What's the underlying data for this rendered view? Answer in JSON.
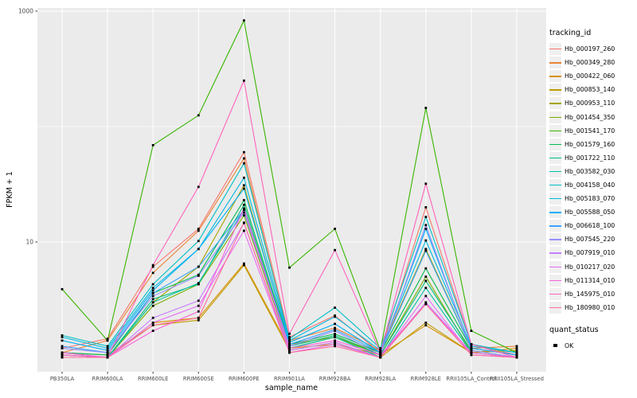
{
  "chart_data": {
    "type": "line",
    "title": "",
    "xlabel": "sample_name",
    "ylabel": "FPKM + 1",
    "y_scale": "log10",
    "y_tick_labels": [
      "1000",
      "10"
    ],
    "y_ticks": [
      1000,
      10
    ],
    "y_gridlines": [
      10,
      100,
      1000
    ],
    "ylim": [
      0.75,
      1066
    ],
    "grid": true,
    "legend_position": "right",
    "panel_bg": "#EBEBEB",
    "grid_color": "#FFFFFF",
    "point_color": "#000000",
    "axis_text_color": "#4D4D4D",
    "categories": [
      "PB350LA",
      "RRIM600LA",
      "RRIM600LE",
      "RRIM600SE",
      "RRIM600PE",
      "RRIM901LA",
      "RRIM928BA",
      "RRIM928LA",
      "RRIM928LE",
      "RRII105LA_Control",
      "RRII105LA_Stressed"
    ],
    "series": [
      {
        "name": "Hb_000197_260",
        "color": "#F8766D",
        "values": [
          1.2,
          1.45,
          6.1,
          13,
          60,
          1.5,
          2.3,
          1.1,
          20,
          1.3,
          1.05
        ]
      },
      {
        "name": "Hb_000349_280",
        "color": "#EA8331",
        "values": [
          1.1,
          1.4,
          5.4,
          12.5,
          53,
          1.4,
          1.8,
          1.15,
          8.5,
          1.2,
          1.25
        ]
      },
      {
        "name": "Hb_000422_060",
        "color": "#D89000",
        "values": [
          1.05,
          1.0,
          2.0,
          2.2,
          6.5,
          1.2,
          1.3,
          1.05,
          1.9,
          1.1,
          1.2
        ]
      },
      {
        "name": "Hb_000853_140",
        "color": "#C09B00",
        "values": [
          1.1,
          1.05,
          1.9,
          2.1,
          6.3,
          1.15,
          1.35,
          1.0,
          2.0,
          1.1,
          1.15
        ]
      },
      {
        "name": "Hb_000953_110",
        "color": "#A3A500",
        "values": [
          1.0,
          1.0,
          3.0,
          6.1,
          31,
          1.3,
          1.5,
          1.1,
          8.7,
          1.2,
          1.05
        ]
      },
      {
        "name": "Hb_001454_350",
        "color": "#7CAE00",
        "values": [
          1.05,
          1.0,
          2.8,
          4.3,
          17,
          1.2,
          1.5,
          1.05,
          5.0,
          1.1,
          1.0
        ]
      },
      {
        "name": "Hb_001541_170",
        "color": "#39B600",
        "values": [
          3.9,
          1.4,
          69,
          125,
          830,
          6.0,
          13,
          1.15,
          145,
          1.7,
          1.1
        ]
      },
      {
        "name": "Hb_001579_160",
        "color": "#00BB4E",
        "values": [
          1.1,
          1.05,
          3.6,
          5.2,
          23,
          1.3,
          1.6,
          1.1,
          5.9,
          1.2,
          1.05
        ]
      },
      {
        "name": "Hb_001722_110",
        "color": "#00BF7D",
        "values": [
          1.05,
          1.0,
          3.2,
          4.3,
          21,
          1.25,
          1.55,
          1.05,
          4.6,
          1.15,
          1.0
        ]
      },
      {
        "name": "Hb_003582_030",
        "color": "#00C1A3",
        "values": [
          1.1,
          1.0,
          3.0,
          4.4,
          19,
          1.2,
          1.5,
          1.0,
          4.0,
          1.1,
          1.0
        ]
      },
      {
        "name": "Hb_004158_040",
        "color": "#00BFC4",
        "values": [
          1.55,
          1.25,
          4.3,
          10.2,
          48,
          1.45,
          2.7,
          1.2,
          16.5,
          1.3,
          1.1
        ]
      },
      {
        "name": "Hb_005183_070",
        "color": "#00BAE0",
        "values": [
          1.5,
          1.2,
          4.0,
          8.7,
          36,
          1.4,
          2.25,
          1.15,
          10.3,
          1.25,
          1.1
        ]
      },
      {
        "name": "Hb_005588_050",
        "color": "#00B0F6",
        "values": [
          1.4,
          1.15,
          3.8,
          8.7,
          29,
          1.35,
          1.95,
          1.1,
          13,
          1.2,
          1.05
        ]
      },
      {
        "name": "Hb_006618_100",
        "color": "#35A2FF",
        "values": [
          1.25,
          1.1,
          3.6,
          6.1,
          19,
          1.3,
          1.75,
          1.1,
          8.4,
          1.2,
          1.05
        ]
      },
      {
        "name": "Hb_007545_220",
        "color": "#9590FF",
        "values": [
          1.2,
          1.1,
          3.4,
          5.1,
          18,
          1.25,
          1.7,
          1.05,
          14,
          1.15,
          1.0
        ]
      },
      {
        "name": "Hb_007919_010",
        "color": "#C77CFF",
        "values": [
          1.1,
          1.0,
          2.2,
          3.1,
          14.6,
          1.15,
          1.35,
          1.0,
          3.0,
          1.1,
          1.0
        ]
      },
      {
        "name": "Hb_010217_020",
        "color": "#E76BF3",
        "values": [
          1.05,
          1.0,
          2.0,
          2.8,
          12.5,
          1.1,
          1.3,
          1.0,
          3.4,
          1.05,
          1.0
        ]
      },
      {
        "name": "Hb_011314_010",
        "color": "#FA62DB",
        "values": [
          1.1,
          1.0,
          1.7,
          2.5,
          19.5,
          1.2,
          1.4,
          1.05,
          2.9,
          1.1,
          1.0
        ]
      },
      {
        "name": "Hb_145975_010",
        "color": "#FF62BC",
        "values": [
          1.05,
          1.0,
          6.3,
          30,
          250,
          1.6,
          8.5,
          1.1,
          32,
          1.3,
          1.0
        ]
      },
      {
        "name": "Hb_180980_010",
        "color": "#FF6A98",
        "values": [
          1.0,
          1.0,
          1.9,
          2.2,
          14.7,
          1.1,
          1.25,
          1.0,
          2.9,
          1.05,
          1.0
        ]
      }
    ]
  },
  "legend": {
    "tracking_title": "tracking_id",
    "quant_title": "quant_status",
    "quant_items": [
      {
        "label": "OK"
      }
    ]
  }
}
